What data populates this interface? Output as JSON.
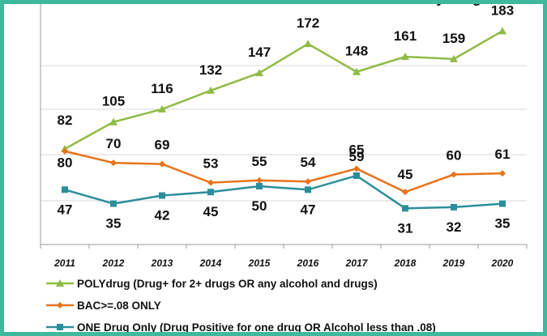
{
  "chart_data": {
    "type": "line",
    "title": "y drug",
    "x": [
      "2011",
      "2012",
      "2013",
      "2014",
      "2015",
      "2016",
      "2017",
      "2018",
      "2019",
      "2020"
    ],
    "ylim": [
      0,
      220
    ],
    "grid": true,
    "legend": "bottom",
    "series": [
      {
        "name": "POLYdrug (Drug+ for 2+ drugs OR any alcohol and drugs)",
        "color": "#8fbc45",
        "marker": "triangle",
        "values": [
          82,
          105,
          116,
          132,
          147,
          172,
          148,
          161,
          159,
          183
        ]
      },
      {
        "name": "BAC>=.08 ONLY",
        "color": "#e8731a",
        "marker": "diamond",
        "values": [
          80,
          70,
          69,
          53,
          55,
          54,
          65,
          45,
          60,
          61
        ]
      },
      {
        "name": "ONE Drug Only (Drug Positive for one drug OR Alcohol less than .08)",
        "color": "#2b8e9b",
        "marker": "square",
        "values": [
          47,
          35,
          42,
          45,
          50,
          47,
          59,
          31,
          32,
          35
        ]
      }
    ]
  }
}
